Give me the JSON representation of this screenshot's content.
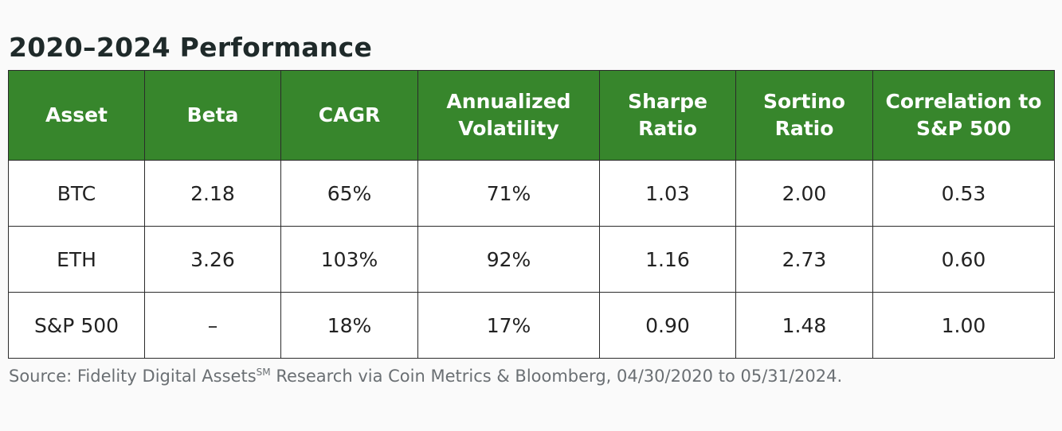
{
  "title": "2020–2024 Performance",
  "columns": [
    "Asset",
    "Beta",
    "CAGR",
    "Annualized Volatility",
    "Sharpe Ratio",
    "Sortino Ratio",
    "Correlation to S&P 500"
  ],
  "rows": [
    [
      "BTC",
      "2.18",
      "65%",
      "71%",
      "1.03",
      "2.00",
      "0.53"
    ],
    [
      "ETH",
      "3.26",
      "103%",
      "92%",
      "1.16",
      "2.73",
      "0.60"
    ],
    [
      "S&P 500",
      "–",
      "18%",
      "17%",
      "0.90",
      "1.48",
      "1.00"
    ]
  ],
  "source": {
    "prefix": "Source: Fidelity Digital Assets",
    "mark": "SM",
    "suffix": " Research via Coin Metrics & Bloomberg, 04/30/2020 to 05/31/2024."
  },
  "colors": {
    "header_bg": "#37862c",
    "header_text": "#ffffff",
    "border": "#2b2b2b"
  }
}
